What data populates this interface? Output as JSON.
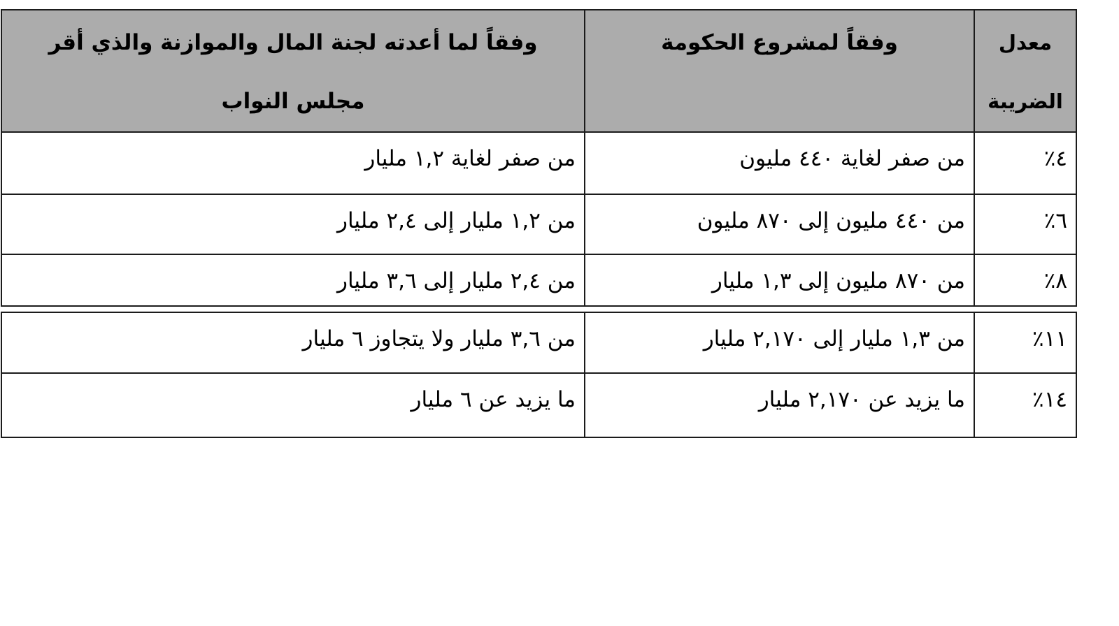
{
  "document": {
    "language": "ar",
    "direction": "rtl",
    "description_note": "tax brackets comparison table"
  },
  "colors": {
    "header_bg": "#ACACAC",
    "border": "#1B1B1B",
    "page_bg": "#FFFFFF",
    "text": "#000000"
  },
  "table": {
    "header": {
      "rate_line1": "معدل",
      "rate_line2": "الضريبة",
      "government": "وفقاً لمشروع الحكومة",
      "committee_line1": "وفقاً لما أعدته لجنة المال والموازنة والذي أقر",
      "committee_line2": "مجلس النواب"
    },
    "rows": [
      {
        "rate": "٤٪",
        "government": "من صفر لغاية ٤٤٠ مليون",
        "committee": "من صفر لغاية ١,٢ مليار"
      },
      {
        "rate": "٦٪",
        "government": "من ٤٤٠ مليون إلى ٨٧٠ مليون",
        "committee": "من ١,٢ مليار إلى ٢,٤ مليار"
      },
      {
        "rate": "٨٪",
        "government": "من ٨٧٠ مليون إلى ١,٣ مليار",
        "committee": "من ٢,٤ مليار إلى ٣,٦ مليار"
      },
      {
        "rate": "١١٪",
        "government": "من ١,٣ مليار إلى ٢,١٧٠ مليار",
        "committee": "من ٣,٦ مليار ولا يتجاوز ٦ مليار"
      },
      {
        "rate": "١٤٪",
        "government": "ما يزيد عن ٢,١٧٠ مليار",
        "committee": "ما يزيد عن ٦ مليار"
      }
    ]
  }
}
